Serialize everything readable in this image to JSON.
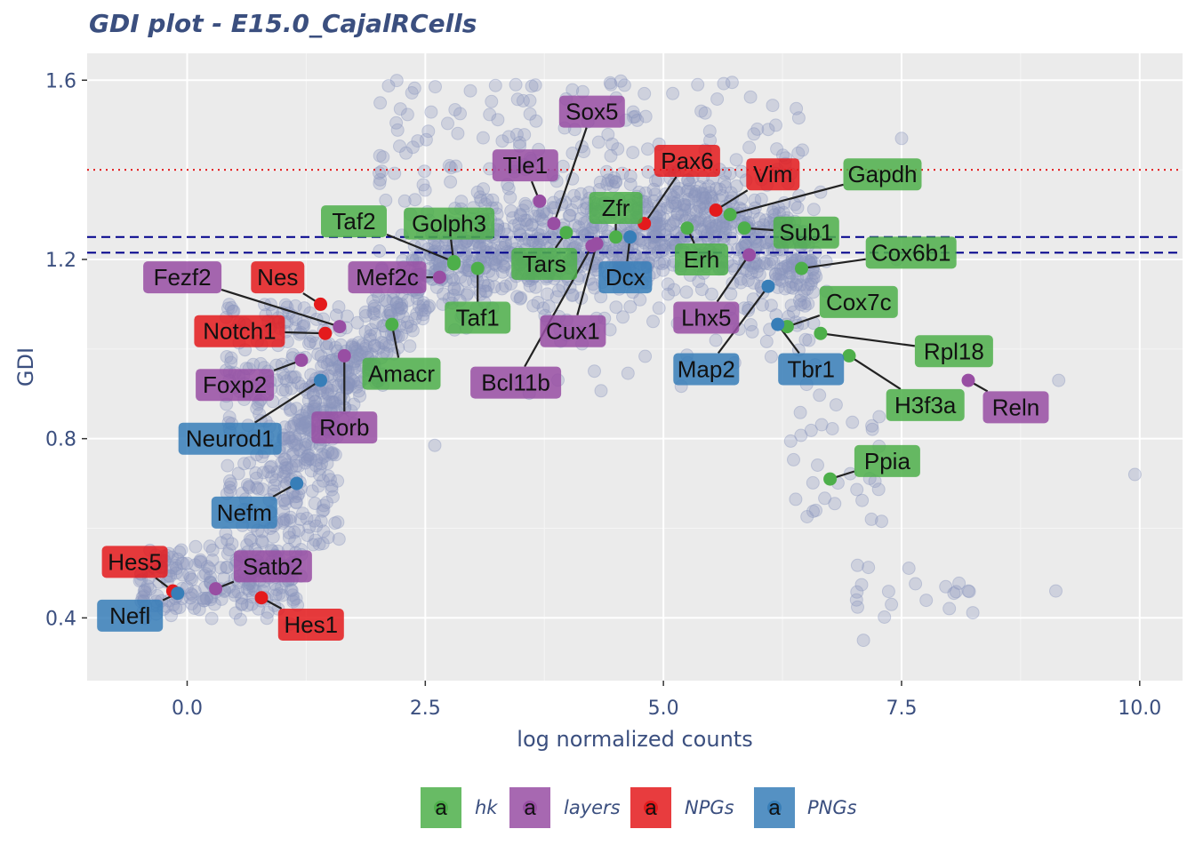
{
  "chart_data": {
    "type": "scatter",
    "title": "GDI plot - E15.0_CajalRCells",
    "xlabel": "log normalized counts",
    "ylabel": "GDI",
    "xlim": [
      -1.05,
      10.45
    ],
    "ylim": [
      0.26,
      1.66
    ],
    "x_ticks": [
      0.0,
      2.5,
      5.0,
      7.5,
      10.0
    ],
    "x_tick_labels": [
      "0.0",
      "2.5",
      "5.0",
      "7.5",
      "10.0"
    ],
    "y_ticks": [
      0.4,
      0.8,
      1.2,
      1.6
    ],
    "y_tick_labels": [
      "0.4",
      "0.8",
      "1.2",
      "1.6"
    ],
    "hlines": [
      {
        "y": 1.4,
        "style": "dotted",
        "color": "#e41a1c"
      },
      {
        "y": 1.25,
        "style": "dashed",
        "color": "#00008b"
      },
      {
        "y": 1.215,
        "style": "dashed",
        "color": "#00008b"
      }
    ],
    "background_points_color": "#8a96bd",
    "grid": true,
    "legend_position": "bottom",
    "groups": [
      {
        "name": "hk",
        "color": "#4daf4a"
      },
      {
        "name": "layers",
        "color": "#984ea3"
      },
      {
        "name": "NPGs",
        "color": "#e41a1c"
      },
      {
        "name": "PNGs",
        "color": "#377eb8"
      }
    ],
    "highlighted": [
      {
        "gene": "Sox5",
        "x": 3.85,
        "y": 1.28,
        "group": "layers",
        "lx": 4.25,
        "ly": 1.53
      },
      {
        "gene": "Tle1",
        "x": 3.7,
        "y": 1.33,
        "group": "layers",
        "lx": 3.55,
        "ly": 1.41
      },
      {
        "gene": "Pax6",
        "x": 4.8,
        "y": 1.28,
        "group": "NPGs",
        "lx": 5.25,
        "ly": 1.42
      },
      {
        "gene": "Vim",
        "x": 5.55,
        "y": 1.31,
        "group": "NPGs",
        "lx": 6.15,
        "ly": 1.39
      },
      {
        "gene": "Gapdh",
        "x": 5.7,
        "y": 1.3,
        "group": "hk",
        "lx": 7.3,
        "ly": 1.39
      },
      {
        "gene": "Zfr",
        "x": 4.5,
        "y": 1.25,
        "group": "hk",
        "lx": 4.5,
        "ly": 1.315
      },
      {
        "gene": "Taf2",
        "x": 2.8,
        "y": 1.195,
        "group": "hk",
        "lx": 1.75,
        "ly": 1.285
      },
      {
        "gene": "Golph3",
        "x": 2.8,
        "y": 1.19,
        "group": "hk",
        "lx": 2.75,
        "ly": 1.28
      },
      {
        "gene": "Tars",
        "x": 3.98,
        "y": 1.26,
        "group": "hk",
        "lx": 3.75,
        "ly": 1.19
      },
      {
        "gene": "Sub1",
        "x": 5.85,
        "y": 1.27,
        "group": "hk",
        "lx": 6.5,
        "ly": 1.26
      },
      {
        "gene": "Erh",
        "x": 5.25,
        "y": 1.27,
        "group": "hk",
        "lx": 5.4,
        "ly": 1.2
      },
      {
        "gene": "Cox6b1",
        "x": 6.45,
        "y": 1.18,
        "group": "hk",
        "lx": 7.6,
        "ly": 1.215
      },
      {
        "gene": "Fezf2",
        "x": 1.6,
        "y": 1.05,
        "group": "layers",
        "lx": -0.05,
        "ly": 1.16
      },
      {
        "gene": "Nes",
        "x": 1.4,
        "y": 1.1,
        "group": "NPGs",
        "lx": 0.95,
        "ly": 1.16
      },
      {
        "gene": "Mef2c",
        "x": 2.65,
        "y": 1.16,
        "group": "layers",
        "lx": 2.1,
        "ly": 1.16
      },
      {
        "gene": "Dcx",
        "x": 4.65,
        "y": 1.25,
        "group": "PNGs",
        "lx": 4.6,
        "ly": 1.16
      },
      {
        "gene": "Taf1",
        "x": 3.05,
        "y": 1.18,
        "group": "hk",
        "lx": 3.05,
        "ly": 1.07
      },
      {
        "gene": "Cux1",
        "x": 4.3,
        "y": 1.235,
        "group": "layers",
        "lx": 4.05,
        "ly": 1.04
      },
      {
        "gene": "Lhx5",
        "x": 5.9,
        "y": 1.21,
        "group": "layers",
        "lx": 5.45,
        "ly": 1.07
      },
      {
        "gene": "Cox7c",
        "x": 6.3,
        "y": 1.05,
        "group": "hk",
        "lx": 7.05,
        "ly": 1.105
      },
      {
        "gene": "Notch1",
        "x": 1.45,
        "y": 1.035,
        "group": "NPGs",
        "lx": 0.55,
        "ly": 1.04
      },
      {
        "gene": "Amacr",
        "x": 2.15,
        "y": 1.055,
        "group": "hk",
        "lx": 2.25,
        "ly": 0.945
      },
      {
        "gene": "Bcl11b",
        "x": 4.25,
        "y": 1.23,
        "group": "layers",
        "lx": 3.45,
        "ly": 0.925
      },
      {
        "gene": "Map2",
        "x": 6.1,
        "y": 1.14,
        "group": "PNGs",
        "lx": 5.45,
        "ly": 0.955
      },
      {
        "gene": "Tbr1",
        "x": 6.2,
        "y": 1.055,
        "group": "PNGs",
        "lx": 6.55,
        "ly": 0.955
      },
      {
        "gene": "Rpl18",
        "x": 6.65,
        "y": 1.035,
        "group": "hk",
        "lx": 8.05,
        "ly": 0.995
      },
      {
        "gene": "Foxp2",
        "x": 1.2,
        "y": 0.975,
        "group": "layers",
        "lx": 0.5,
        "ly": 0.92
      },
      {
        "gene": "H3f3a",
        "x": 6.95,
        "y": 0.985,
        "group": "hk",
        "lx": 7.75,
        "ly": 0.875
      },
      {
        "gene": "Reln",
        "x": 8.2,
        "y": 0.93,
        "group": "layers",
        "lx": 8.7,
        "ly": 0.87
      },
      {
        "gene": "Neurod1",
        "x": 1.4,
        "y": 0.93,
        "group": "PNGs",
        "lx": 0.45,
        "ly": 0.8
      },
      {
        "gene": "Rorb",
        "x": 1.65,
        "y": 0.985,
        "group": "layers",
        "lx": 1.65,
        "ly": 0.825
      },
      {
        "gene": "Ppia",
        "x": 6.75,
        "y": 0.71,
        "group": "hk",
        "lx": 7.35,
        "ly": 0.75
      },
      {
        "gene": "Nefm",
        "x": 1.15,
        "y": 0.7,
        "group": "PNGs",
        "lx": 0.6,
        "ly": 0.635
      },
      {
        "gene": "Hes5",
        "x": -0.15,
        "y": 0.46,
        "group": "NPGs",
        "lx": -0.55,
        "ly": 0.525
      },
      {
        "gene": "Satb2",
        "x": 0.3,
        "y": 0.465,
        "group": "layers",
        "lx": 0.9,
        "ly": 0.515
      },
      {
        "gene": "Nefl",
        "x": -0.1,
        "y": 0.455,
        "group": "PNGs",
        "lx": -0.6,
        "ly": 0.405
      },
      {
        "gene": "Hes1",
        "x": 0.78,
        "y": 0.445,
        "group": "NPGs",
        "lx": 1.3,
        "ly": 0.385
      }
    ]
  },
  "legend": {
    "key_letter": "a",
    "items": [
      {
        "label": "hk",
        "color": "#4daf4a"
      },
      {
        "label": "layers",
        "color": "#984ea3"
      },
      {
        "label": "NPGs",
        "color": "#e41a1c"
      },
      {
        "label": "PNGs",
        "color": "#377eb8"
      }
    ]
  }
}
